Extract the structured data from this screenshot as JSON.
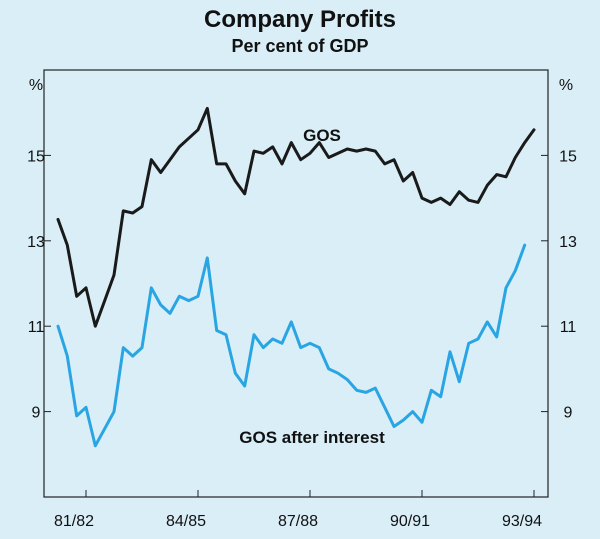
{
  "chart_data": {
    "type": "line",
    "title": "Company Profits",
    "subtitle": "Per cent of GDP",
    "ylabel_left": "%",
    "ylabel_right": "%",
    "ylim": [
      7.0,
      17.0
    ],
    "yticks": [
      9,
      11,
      13,
      15
    ],
    "xlim": [
      0,
      51
    ],
    "xticks": [
      {
        "label": "81/82",
        "x": 3
      },
      {
        "label": "84/85",
        "x": 15
      },
      {
        "label": "87/88",
        "x": 27
      },
      {
        "label": "90/91",
        "x": 39
      },
      {
        "label": "93/94",
        "x": 51
      }
    ],
    "series": [
      {
        "name": "GOS",
        "color": "#1a1a1a",
        "values": [
          13.5,
          12.9,
          11.7,
          11.9,
          11.0,
          11.6,
          12.2,
          13.7,
          13.65,
          13.8,
          14.9,
          14.6,
          14.9,
          15.2,
          15.4,
          15.6,
          16.1,
          14.8,
          14.8,
          14.4,
          14.1,
          15.1,
          15.05,
          15.2,
          14.8,
          15.3,
          14.9,
          15.05,
          15.3,
          14.95,
          15.05,
          15.15,
          15.1,
          15.15,
          15.1,
          14.8,
          14.9,
          14.4,
          14.6,
          14.0,
          13.9,
          14.0,
          13.85,
          14.15,
          13.95,
          13.9,
          14.3,
          14.55,
          14.5,
          14.95,
          15.3,
          15.6
        ]
      },
      {
        "name": "GOS after interest",
        "color": "#2aa5e3",
        "values": [
          11.0,
          10.3,
          8.9,
          9.1,
          8.2,
          8.6,
          9.0,
          10.5,
          10.3,
          10.5,
          11.9,
          11.5,
          11.3,
          11.7,
          11.6,
          11.7,
          12.6,
          10.9,
          10.8,
          9.9,
          9.6,
          10.8,
          10.5,
          10.7,
          10.6,
          11.1,
          10.5,
          10.6,
          10.5,
          10.0,
          9.9,
          9.75,
          9.5,
          9.45,
          9.55,
          9.1,
          8.65,
          8.8,
          9.0,
          8.75,
          9.5,
          9.35,
          10.4,
          9.7,
          10.6,
          10.7,
          11.1,
          10.75,
          11.9,
          12.3,
          12.9
        ]
      }
    ],
    "annotations": [
      {
        "text": "GOS",
        "series": "GOS"
      },
      {
        "text": "GOS after interest",
        "series": "GOS after interest"
      }
    ]
  }
}
